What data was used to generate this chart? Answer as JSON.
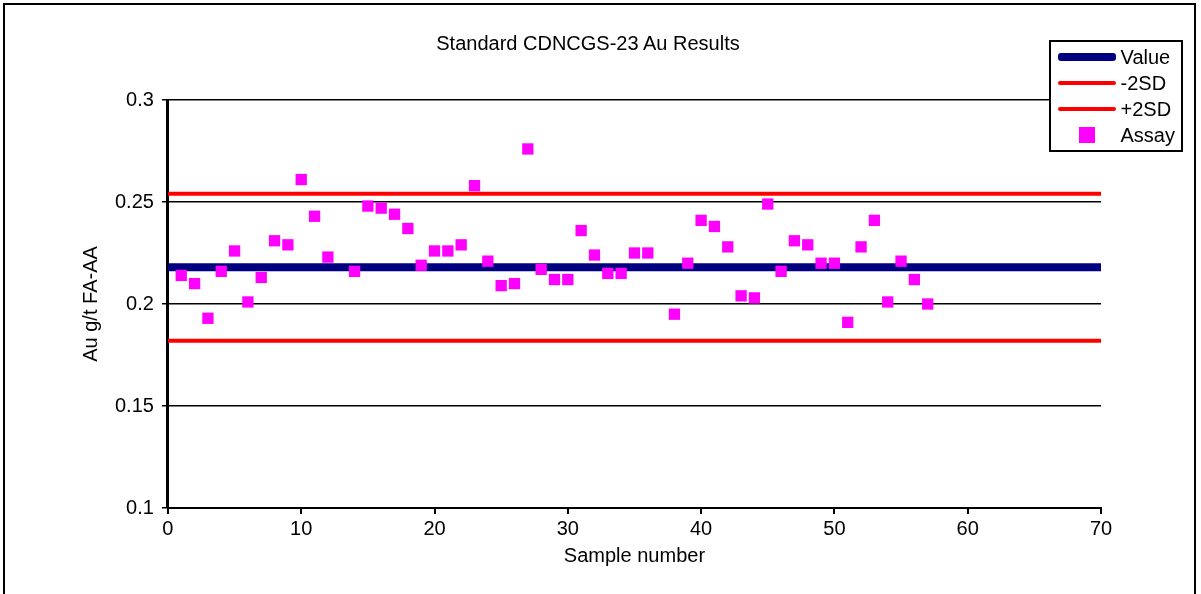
{
  "chart_data": {
    "type": "scatter",
    "title": "Standard CDNCGS-23 Au Results",
    "xlabel": "Sample number",
    "ylabel": "Au g/t FA-AA",
    "xlim": [
      0,
      70
    ],
    "xticks": [
      0,
      10,
      20,
      30,
      40,
      50,
      60,
      70
    ],
    "ylim": [
      0.1,
      0.3
    ],
    "yticks": [
      0.1,
      0.15,
      0.2,
      0.25,
      0.3
    ],
    "grid": "y",
    "legend": "top right",
    "series": [
      {
        "name": "Value",
        "type": "line",
        "marker": "none",
        "color": "#000080",
        "x": [
          0,
          70
        ],
        "values": [
          0.218,
          0.218
        ]
      },
      {
        "name": "-2SD",
        "type": "line",
        "marker": "none",
        "color": "#ff0000",
        "x": [
          0,
          70
        ],
        "values": [
          0.182,
          0.182
        ]
      },
      {
        "name": "+2SD",
        "type": "line",
        "marker": "none",
        "color": "#ff0000",
        "x": [
          0,
          70
        ],
        "values": [
          0.254,
          0.254
        ]
      },
      {
        "name": "Assay",
        "marker": "square",
        "color": "#ff00ff",
        "x": [
          1,
          2,
          3,
          4,
          5,
          6,
          7,
          8,
          9,
          10,
          11,
          12,
          14,
          15,
          16,
          17,
          18,
          19,
          20,
          21,
          22,
          23,
          24,
          25,
          26,
          27,
          28,
          29,
          30,
          31,
          32,
          33,
          34,
          35,
          36,
          38,
          39,
          40,
          41,
          42,
          43,
          44,
          45,
          46,
          47,
          48,
          49,
          50,
          51,
          52,
          53,
          54,
          55,
          56,
          57
        ],
        "values": [
          0.214,
          0.21,
          0.193,
          0.216,
          0.226,
          0.201,
          0.213,
          0.231,
          0.229,
          0.261,
          0.243,
          0.223,
          0.216,
          0.248,
          0.247,
          0.244,
          0.237,
          0.219,
          0.226,
          0.226,
          0.229,
          0.258,
          0.221,
          0.209,
          0.21,
          0.276,
          0.217,
          0.212,
          0.212,
          0.236,
          0.224,
          0.215,
          0.215,
          0.225,
          0.225,
          0.195,
          0.22,
          0.241,
          0.238,
          0.228,
          0.204,
          0.203,
          0.249,
          0.216,
          0.231,
          0.229,
          0.22,
          0.22,
          0.191,
          0.228,
          0.241,
          0.201,
          0.221,
          0.212,
          0.2
        ]
      }
    ]
  }
}
